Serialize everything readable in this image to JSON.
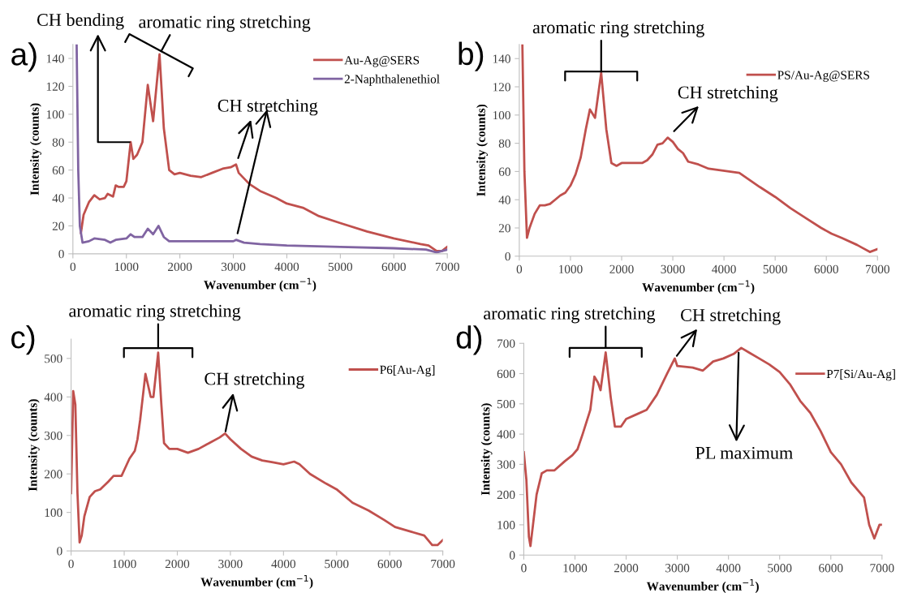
{
  "chart_data": [
    {
      "type": "line",
      "xlabel": "Wavenumber (cm$^{−1}$)",
      "ylabel": "Intensity (counts)",
      "xlim": [
        0,
        7000
      ],
      "xticks": [
        0,
        1000,
        2000,
        3000,
        4000,
        5000,
        6000,
        7000
      ],
      "ylim": [
        0,
        150
      ],
      "yticks": [
        0,
        20,
        40,
        60,
        80,
        100,
        120,
        140
      ],
      "legend": "top right",
      "annotations": [
        "a)",
        {
          "text": "CH bending",
          "x": 1080,
          "y": 80
        },
        {
          "text": "aromatic ring stretching",
          "x": 1620,
          "y": 143
        },
        {
          "text": "CH stretching",
          "x": 3050,
          "y": 64
        }
      ],
      "series": [
        {
          "name": "Au-Ag@SERS",
          "color": "#c0504d",
          "x": [
            150,
            200,
            300,
            400,
            500,
            600,
            650,
            750,
            800,
            850,
            950,
            1000,
            1080,
            1130,
            1200,
            1300,
            1400,
            1500,
            1620,
            1700,
            1800,
            1900,
            2000,
            2200,
            2400,
            2600,
            2800,
            2950,
            3050,
            3100,
            3300,
            3500,
            3800,
            4000,
            4300,
            4600,
            5000,
            5500,
            6000,
            6500,
            6650,
            6800,
            6900,
            7000
          ],
          "values": [
            15,
            28,
            37,
            42,
            39,
            40,
            43,
            41,
            49,
            48,
            48,
            52,
            80,
            68,
            71,
            80,
            121,
            95,
            143,
            90,
            60,
            57,
            58,
            56,
            55,
            58,
            61,
            62,
            64,
            58,
            50,
            45,
            40,
            36,
            33,
            27,
            22,
            16,
            11,
            7,
            6,
            2,
            2,
            5
          ]
        },
        {
          "name": "2-Naphthalenethiol",
          "color": "#8064a2",
          "x": [
            70,
            100,
            130,
            180,
            300,
            400,
            600,
            700,
            800,
            1000,
            1080,
            1150,
            1300,
            1400,
            1500,
            1600,
            1700,
            1800,
            2000,
            3000,
            3050,
            3200,
            3500,
            4000,
            5000,
            6000,
            6600,
            6800,
            7000
          ],
          "values": [
            150,
            60,
            20,
            8,
            9,
            11,
            10,
            8,
            10,
            11,
            14,
            12,
            12,
            18,
            14,
            20,
            12,
            9,
            9,
            9,
            10,
            8,
            7,
            6,
            5,
            4,
            3,
            1,
            3
          ]
        }
      ]
    },
    {
      "type": "line",
      "xlabel": "Wavenumber (cm$^{−1}$)",
      "ylabel": "Intensity (counts)",
      "xlim": [
        0,
        7000
      ],
      "xticks": [
        0,
        1000,
        2000,
        3000,
        4000,
        5000,
        6000,
        7000
      ],
      "ylim": [
        0,
        150
      ],
      "yticks": [
        0,
        20,
        40,
        60,
        80,
        100,
        120,
        140
      ],
      "legend": "top right",
      "annotations": [
        "b)",
        {
          "text": "aromatic ring stretching",
          "x": 1600,
          "y": 130
        },
        {
          "text": "CH stretching",
          "x": 2900,
          "y": 84
        }
      ],
      "series": [
        {
          "name": "PS/Au-Ag@SERS",
          "color": "#c0504d",
          "x": [
            60,
            100,
            150,
            200,
            300,
            400,
            500,
            600,
            700,
            800,
            900,
            1000,
            1100,
            1200,
            1300,
            1380,
            1480,
            1600,
            1700,
            1800,
            1900,
            2000,
            2200,
            2400,
            2500,
            2600,
            2700,
            2800,
            2900,
            3000,
            3100,
            3200,
            3300,
            3500,
            3700,
            3900,
            4100,
            4300,
            4500,
            4700,
            5000,
            5300,
            5600,
            5900,
            6100,
            6300,
            6600,
            6700,
            6850,
            7000
          ],
          "values": [
            150,
            60,
            13,
            20,
            30,
            36,
            36,
            37,
            40,
            43,
            45,
            50,
            58,
            70,
            90,
            104,
            98,
            130,
            90,
            66,
            64,
            66,
            66,
            66,
            68,
            72,
            79,
            80,
            84,
            81,
            76,
            73,
            67,
            65,
            62,
            61,
            60,
            59,
            54,
            49,
            42,
            34,
            27,
            20,
            16,
            13,
            8,
            6,
            3,
            5
          ]
        }
      ]
    },
    {
      "type": "line",
      "xlabel": "Wavenumber (cm$^{−1}$)",
      "ylabel": "Intensity (counts)",
      "xlim": [
        0,
        7000
      ],
      "xticks": [
        0,
        1000,
        2000,
        3000,
        4000,
        5000,
        6000,
        7000
      ],
      "ylim": [
        0,
        550
      ],
      "yticks": [
        0,
        100,
        200,
        300,
        400,
        500
      ],
      "legend": "top right",
      "annotations": [
        "c)",
        {
          "text": "aromatic ring stretching",
          "x": 1640,
          "y": 515
        },
        {
          "text": "CH stretching",
          "x": 2900,
          "y": 305
        }
      ],
      "series": [
        {
          "name": "P6[Au-Ag]",
          "color": "#c0504d",
          "x": [
            0,
            40,
            80,
            120,
            160,
            200,
            250,
            350,
            450,
            550,
            700,
            800,
            950,
            1000,
            1100,
            1200,
            1250,
            1300,
            1400,
            1500,
            1550,
            1640,
            1700,
            1750,
            1850,
            2000,
            2200,
            2400,
            2600,
            2800,
            2900,
            3000,
            3200,
            3400,
            3600,
            3800,
            4000,
            4200,
            4300,
            4500,
            4800,
            5000,
            5300,
            5600,
            5900,
            6100,
            6400,
            6650,
            6800,
            6900,
            7000
          ],
          "values": [
            150,
            415,
            380,
            150,
            22,
            40,
            90,
            140,
            155,
            160,
            180,
            195,
            195,
            210,
            240,
            260,
            290,
            340,
            460,
            400,
            400,
            515,
            380,
            280,
            265,
            265,
            255,
            265,
            280,
            295,
            305,
            290,
            265,
            245,
            235,
            230,
            225,
            232,
            225,
            200,
            175,
            160,
            125,
            105,
            80,
            62,
            50,
            40,
            15,
            15,
            28
          ]
        }
      ]
    },
    {
      "type": "line",
      "xlabel": "Wavenumber (cm$^{−1}$)",
      "ylabel": "Intensity (counts)",
      "xlim": [
        0,
        7000
      ],
      "xticks": [
        0,
        1000,
        2000,
        3000,
        4000,
        5000,
        6000,
        7000
      ],
      "ylim": [
        0,
        700
      ],
      "yticks": [
        0,
        100,
        200,
        300,
        400,
        500,
        600,
        700
      ],
      "legend": "top right",
      "annotations": [
        "d)",
        {
          "text": "aromatic ring stretching",
          "x": 1600,
          "y": 670
        },
        {
          "text": "CH stretching",
          "x": 2950,
          "y": 650
        },
        {
          "text": "PL maximum",
          "x": 4200,
          "y": 680
        }
      ],
      "series": [
        {
          "name": "P7[Si/Au-Ag]",
          "color": "#c0504d",
          "x": [
            0,
            50,
            100,
            130,
            180,
            250,
            350,
            450,
            600,
            800,
            950,
            1050,
            1150,
            1300,
            1380,
            1450,
            1500,
            1600,
            1700,
            1780,
            1900,
            2000,
            2200,
            2400,
            2600,
            2800,
            2950,
            3000,
            3300,
            3500,
            3700,
            3900,
            4100,
            4250,
            4400,
            4600,
            4800,
            5000,
            5200,
            5400,
            5600,
            5800,
            6000,
            6200,
            6400,
            6600,
            6650,
            6750,
            6850,
            6950,
            7000
          ],
          "values": [
            340,
            250,
            60,
            30,
            100,
            200,
            270,
            280,
            280,
            310,
            330,
            350,
            400,
            480,
            590,
            570,
            545,
            670,
            520,
            425,
            425,
            450,
            465,
            480,
            530,
            600,
            650,
            625,
            620,
            610,
            640,
            650,
            665,
            685,
            670,
            650,
            630,
            605,
            565,
            510,
            470,
            410,
            340,
            300,
            240,
            200,
            190,
            100,
            55,
            100,
            100
          ]
        }
      ]
    }
  ]
}
